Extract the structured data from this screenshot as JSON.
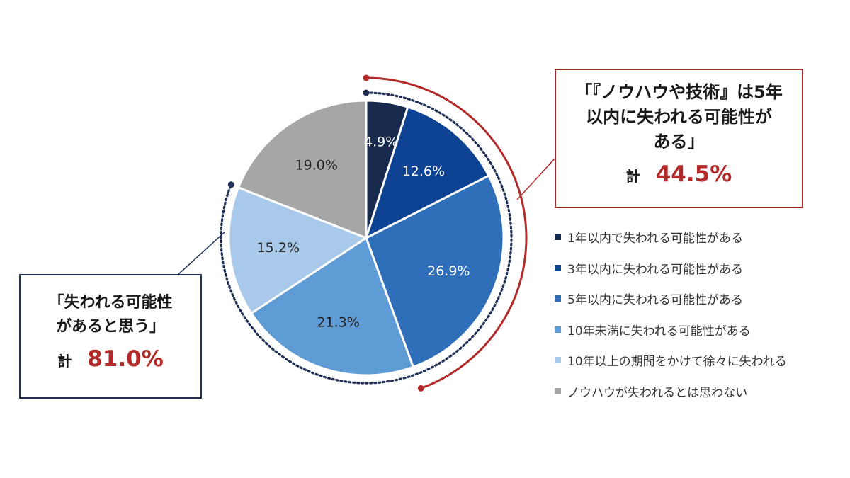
{
  "colors": {
    "accent_red": "#b22a2a",
    "navy": "#1f2f55",
    "slice_colors": [
      "#172a4e",
      "#0e4293",
      "#2f6fba",
      "#5f9bd5",
      "#a8c9ea",
      "#a6a6a6"
    ]
  },
  "chart_data": {
    "type": "pie",
    "start_angle": "12 o'clock, clockwise",
    "categories": [
      "1年以内で失われる可能性がある",
      "3年以内に失われる可能性がある",
      "5年以内に失われる可能性がある",
      "10年未満に失われる可能性がある",
      "10年以上の期間をかけて徐々に失われる",
      "ノウハウが失われるとは思わない"
    ],
    "values": [
      4.9,
      12.6,
      26.9,
      21.3,
      15.2,
      19.0
    ],
    "data_labels": [
      "4.9%",
      "12.6%",
      "26.9%",
      "21.3%",
      "15.2%",
      "19.0%"
    ],
    "legend_position": "right"
  },
  "callouts": {
    "right": {
      "lines": [
        "「『ノウハウや技術』は5年",
        "以内に失われる可能性が",
        "ある」"
      ],
      "total_label": "計",
      "total_value": "44.5%",
      "covers_slices": 3
    },
    "left": {
      "lines": [
        "「失われる可能性",
        "があると思う」"
      ],
      "total_label": "計",
      "total_value": "81.0%",
      "covers_slices": 5
    }
  }
}
